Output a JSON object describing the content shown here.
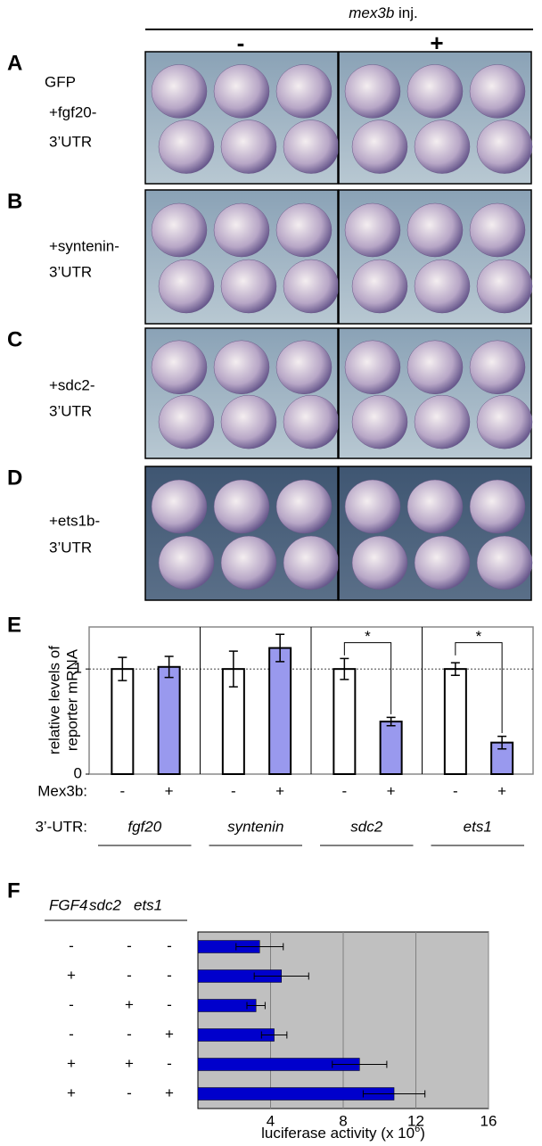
{
  "header": {
    "title_italic": "mex3b",
    "title_rest": "inj.",
    "columns": [
      "-",
      "+"
    ]
  },
  "panels": [
    {
      "letter": "A",
      "labels": [
        "GFP",
        "+fgf20-",
        "3’UTR"
      ]
    },
    {
      "letter": "B",
      "labels": [
        "+syntenin-",
        "3’UTR"
      ]
    },
    {
      "letter": "C",
      "labels": [
        "+sdc2-",
        "3’UTR"
      ]
    },
    {
      "letter": "D",
      "labels": [
        "+ets1b-",
        "3’UTR"
      ]
    }
  ],
  "chart_data": [
    {
      "type": "bar",
      "letter": "E",
      "ylabel": [
        "relative levels of",
        "reporter mRNA"
      ],
      "condition_label": "Mex3b:",
      "group_label": "3’-UTR:",
      "categories": [
        "fgf20",
        "syntenin",
        "sdc2",
        "ets1"
      ],
      "series": [
        {
          "name": "-",
          "color": "#ffffff",
          "values": [
            1.0,
            1.0,
            1.0,
            1.0
          ],
          "errors": [
            0.11,
            0.17,
            0.1,
            0.06
          ]
        },
        {
          "name": "+",
          "color": "#9999ee",
          "values": [
            1.02,
            1.2,
            0.5,
            0.3
          ],
          "errors": [
            0.1,
            0.13,
            0.04,
            0.06
          ]
        }
      ],
      "significance": [
        null,
        null,
        "*",
        "*"
      ],
      "reference_line": 1,
      "ylim": [
        0,
        1.4
      ],
      "yticks": [
        0,
        1
      ]
    },
    {
      "type": "barh",
      "letter": "F",
      "factor_names": [
        "FGF4",
        "sdc2",
        "ets1"
      ],
      "conditions": [
        [
          "-",
          "-",
          "-"
        ],
        [
          "+",
          "-",
          "-"
        ],
        [
          "-",
          "+",
          "-"
        ],
        [
          "-",
          "-",
          "+"
        ],
        [
          "+",
          "+",
          "-"
        ],
        [
          "+",
          "-",
          "+"
        ]
      ],
      "color": "#0000cc",
      "values": [
        3.4,
        4.6,
        3.2,
        4.2,
        8.9,
        10.8
      ],
      "errors": [
        1.3,
        1.5,
        0.5,
        0.7,
        1.5,
        1.7
      ],
      "xlim": [
        0,
        16
      ],
      "xticks": [
        4,
        8,
        12,
        16
      ],
      "grid": true,
      "xlabel": {
        "text": "luciferase activity (x 10",
        "superscript": "6",
        "suffix": ")"
      }
    }
  ]
}
